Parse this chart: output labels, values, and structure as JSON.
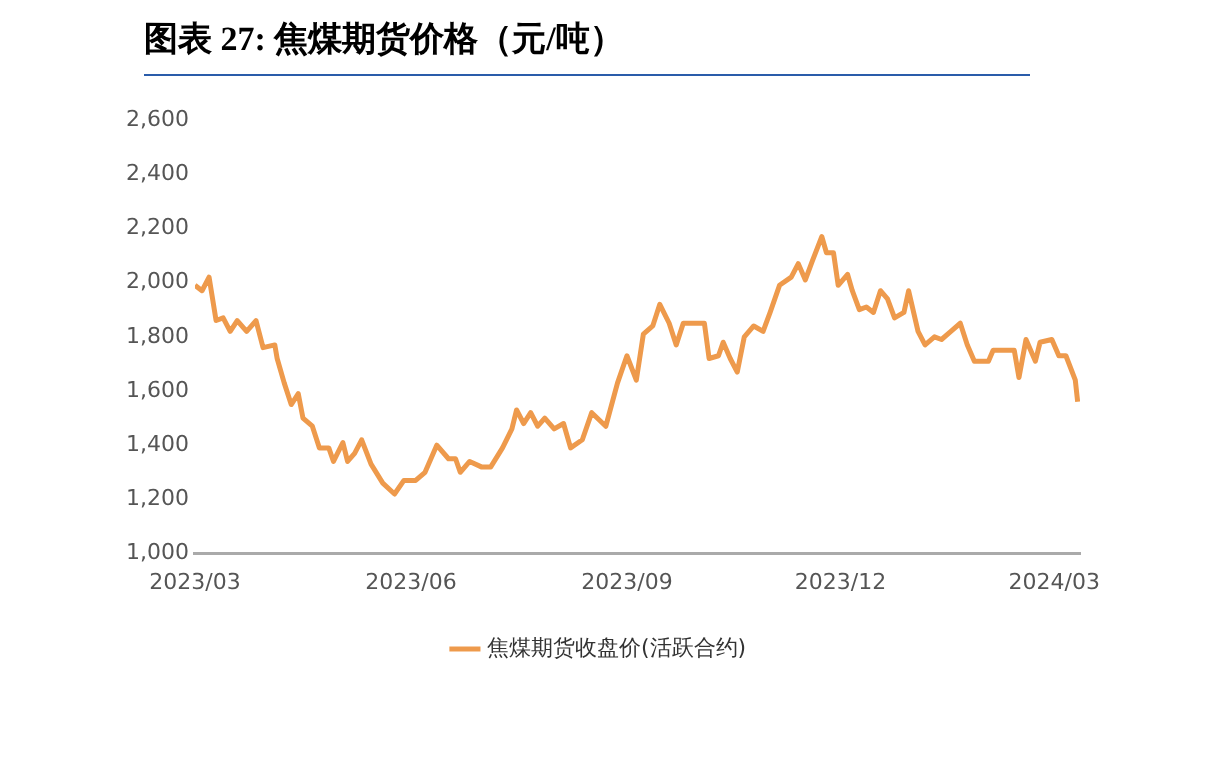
{
  "chart_data": {
    "type": "line",
    "title": "图表 27:  焦煤期货价格（元/吨）",
    "x": [
      "2023-03-01",
      "2023-03-04",
      "2023-03-07",
      "2023-03-10",
      "2023-03-13",
      "2023-03-16",
      "2023-03-19",
      "2023-03-23",
      "2023-03-27",
      "2023-03-30",
      "2023-04-04",
      "2023-04-05",
      "2023-04-08",
      "2023-04-11",
      "2023-04-14",
      "2023-04-16",
      "2023-04-20",
      "2023-04-23",
      "2023-04-27",
      "2023-04-29",
      "2023-05-03",
      "2023-05-05",
      "2023-05-08",
      "2023-05-11",
      "2023-05-15",
      "2023-05-20",
      "2023-05-25",
      "2023-05-29",
      "2023-06-03",
      "2023-06-07",
      "2023-06-12",
      "2023-06-17",
      "2023-06-20",
      "2023-06-22",
      "2023-06-26",
      "2023-07-01",
      "2023-07-05",
      "2023-07-10",
      "2023-07-14",
      "2023-07-16",
      "2023-07-19",
      "2023-07-22",
      "2023-07-25",
      "2023-07-28",
      "2023-08-01",
      "2023-08-05",
      "2023-08-08",
      "2023-08-13",
      "2023-08-17",
      "2023-08-23",
      "2023-08-28",
      "2023-09-01",
      "2023-09-05",
      "2023-09-08",
      "2023-09-12",
      "2023-09-15",
      "2023-09-19",
      "2023-09-22",
      "2023-09-25",
      "2023-10-04",
      "2023-10-06",
      "2023-10-10",
      "2023-10-12",
      "2023-10-15",
      "2023-10-18",
      "2023-10-21",
      "2023-10-25",
      "2023-10-29",
      "2023-11-01",
      "2023-11-05",
      "2023-11-10",
      "2023-11-13",
      "2023-11-16",
      "2023-11-19",
      "2023-11-23",
      "2023-11-25",
      "2023-11-28",
      "2023-11-30",
      "2023-12-04",
      "2023-12-06",
      "2023-12-09",
      "2023-12-12",
      "2023-12-15",
      "2023-12-18",
      "2023-12-21",
      "2023-12-24",
      "2023-12-28",
      "2023-12-30",
      "2024-01-03",
      "2024-01-06",
      "2024-01-10",
      "2024-01-13",
      "2024-01-17",
      "2024-01-21",
      "2024-01-24",
      "2024-01-27",
      "2024-02-02",
      "2024-02-04",
      "2024-02-13",
      "2024-02-15",
      "2024-02-18",
      "2024-02-22",
      "2024-02-24",
      "2024-02-29",
      "2024-03-03",
      "2024-03-06",
      "2024-03-10",
      "2024-03-11"
    ],
    "series": [
      {
        "name": "焦煤期货收盘价(活跃合约)",
        "color": "#ee9a4c",
        "values": [
          1990,
          1970,
          2020,
          1860,
          1870,
          1820,
          1860,
          1820,
          1860,
          1760,
          1770,
          1720,
          1630,
          1550,
          1590,
          1500,
          1470,
          1390,
          1390,
          1340,
          1410,
          1340,
          1370,
          1420,
          1330,
          1260,
          1220,
          1270,
          1270,
          1300,
          1400,
          1350,
          1350,
          1300,
          1340,
          1320,
          1320,
          1390,
          1460,
          1530,
          1480,
          1520,
          1470,
          1500,
          1460,
          1480,
          1390,
          1420,
          1520,
          1470,
          1630,
          1730,
          1640,
          1810,
          1840,
          1920,
          1850,
          1770,
          1850,
          1850,
          1720,
          1730,
          1780,
          1720,
          1670,
          1800,
          1840,
          1820,
          1890,
          1990,
          2020,
          2070,
          2010,
          2080,
          2170,
          2110,
          2110,
          1990,
          2030,
          1970,
          1900,
          1910,
          1890,
          1970,
          1940,
          1870,
          1890,
          1970,
          1820,
          1770,
          1800,
          1790,
          1820,
          1850,
          1770,
          1710,
          1710,
          1750,
          1750,
          1650,
          1790,
          1710,
          1780,
          1790,
          1730,
          1730,
          1640,
          1560
        ]
      }
    ],
    "xlim": [
      "2023-03-01",
      "2024-03-12"
    ],
    "xticks": [
      {
        "value": "2023-03-01",
        "label": "2023/03"
      },
      {
        "value": "2023-06-01",
        "label": "2023/06"
      },
      {
        "value": "2023-09-01",
        "label": "2023/09"
      },
      {
        "value": "2023-12-01",
        "label": "2023/12"
      },
      {
        "value": "2024-03-01",
        "label": "2024/03"
      }
    ],
    "ylim": [
      1000,
      2600
    ],
    "yticks": [
      {
        "value": 1000,
        "label": "1,000"
      },
      {
        "value": 1200,
        "label": "1,200"
      },
      {
        "value": 1400,
        "label": "1,400"
      },
      {
        "value": 1600,
        "label": "1,600"
      },
      {
        "value": 1800,
        "label": "1,800"
      },
      {
        "value": 2000,
        "label": "2,000"
      },
      {
        "value": 2200,
        "label": "2,200"
      },
      {
        "value": 2400,
        "label": "2,400"
      },
      {
        "value": 2600,
        "label": "2,600"
      }
    ],
    "grid": false,
    "legend": "bottom",
    "marker": "none",
    "line_style": "solid"
  }
}
